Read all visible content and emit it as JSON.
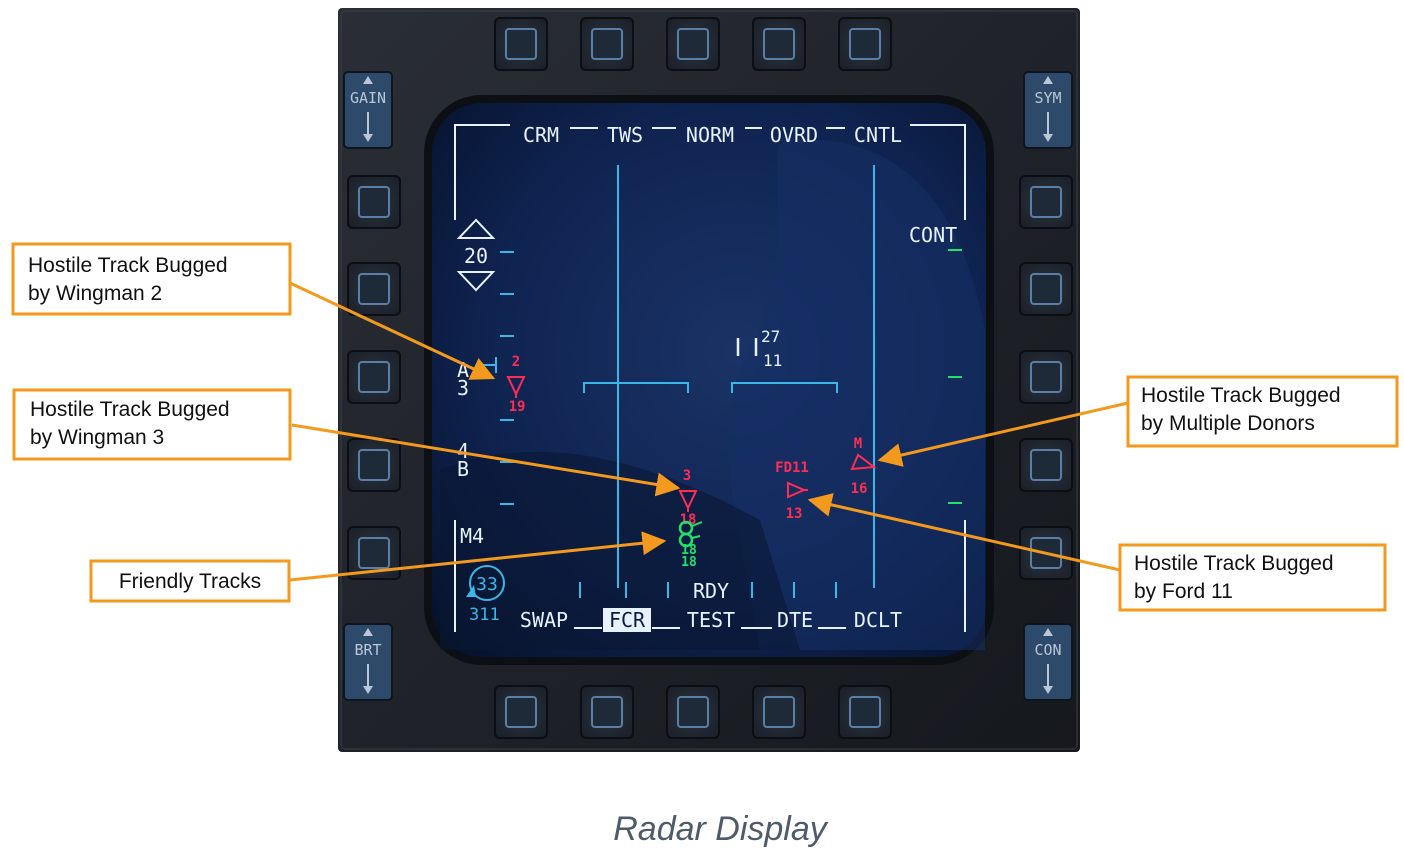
{
  "colors": {
    "bezel": "#1c1f24",
    "screen": "#0b1a3d",
    "symbology": "#e8f2ff",
    "cyan": "#39b7e8",
    "hostile": "#ff2d55",
    "friendly": "#22e06a",
    "callout_border": "#f39a1e",
    "arrow": "#f39a1e"
  },
  "mfd": {
    "top_modes": [
      "CRM",
      "TWS",
      "NORM",
      "OVRD",
      "CNTL"
    ],
    "bottom_modes": [
      "SWAP",
      "FCR",
      "TEST",
      "DTE",
      "DCLT"
    ],
    "selected_bottom": "FCR",
    "rocker_labels": {
      "gain": "GAIN",
      "sym": "SYM",
      "brt": "BRT",
      "con": "CON"
    },
    "cont": "CONT",
    "range": "20",
    "azimuth": "A\n3",
    "bar": "4\nB",
    "mode_m4": "M4",
    "status": "RDY",
    "heading_circle": "33",
    "heading_value": "311",
    "acq_cursor_top": "27",
    "acq_cursor_bottom": "11",
    "tracks": {
      "wingman2": {
        "top": "2",
        "bottom": "19"
      },
      "wingman3": {
        "top": "3",
        "bottom": "18"
      },
      "ford11": {
        "top": "FD11",
        "bottom": "13"
      },
      "multi": {
        "top": "M",
        "bottom": "16"
      },
      "friendly_labels": [
        "18",
        "18"
      ]
    }
  },
  "callouts": {
    "wingman2": [
      "Hostile Track Bugged",
      "by Wingman 2"
    ],
    "wingman3": [
      "Hostile Track Bugged",
      "by Wingman 3"
    ],
    "friendly": [
      "Friendly Tracks"
    ],
    "multi": [
      "Hostile Track Bugged",
      "by Multiple Donors"
    ],
    "ford11": [
      "Hostile Track Bugged",
      "by Ford 11"
    ]
  },
  "caption": "Radar Display"
}
